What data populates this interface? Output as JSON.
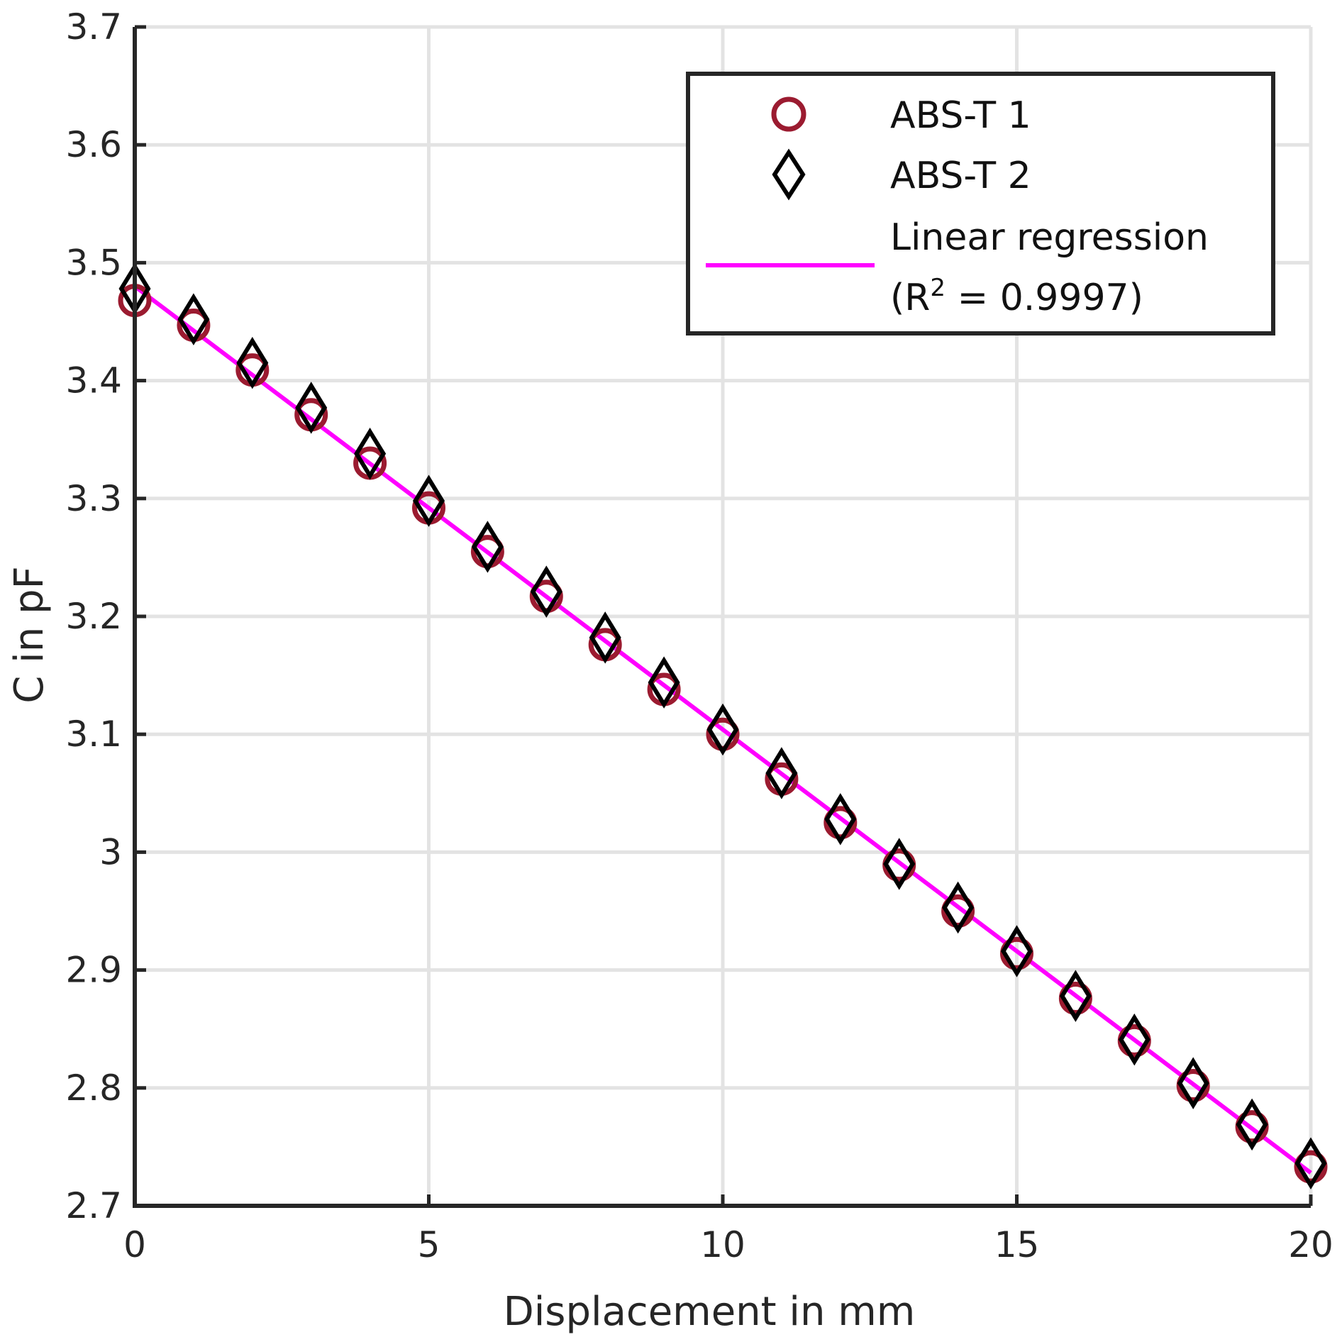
{
  "chart_data": {
    "type": "scatter",
    "xlabel": "Displacement in mm",
    "ylabel": "C in pF",
    "xlim": [
      0,
      20
    ],
    "ylim": [
      2.7,
      3.7
    ],
    "x_ticks": [
      "0",
      "5",
      "10",
      "15",
      "20"
    ],
    "y_ticks": [
      "2.7",
      "2.8",
      "2.9",
      "3",
      "3.1",
      "3.2",
      "3.3",
      "3.4",
      "3.5",
      "3.6",
      "3.7"
    ],
    "grid": true,
    "legend_position": "top-right",
    "x": [
      0,
      1,
      2,
      3,
      4,
      5,
      6,
      7,
      8,
      9,
      10,
      11,
      12,
      13,
      14,
      15,
      16,
      17,
      18,
      19,
      20
    ],
    "series": [
      {
        "name": "ABS-T 1",
        "marker": "circle",
        "color": "#9b1b30",
        "values": [
          3.468,
          3.447,
          3.409,
          3.371,
          3.33,
          3.292,
          3.255,
          3.217,
          3.176,
          3.138,
          3.1,
          3.062,
          3.025,
          2.989,
          2.95,
          2.914,
          2.876,
          2.84,
          2.802,
          2.767,
          2.733
        ]
      },
      {
        "name": "ABS-T 2",
        "marker": "diamond",
        "color": "#000000",
        "values": [
          3.478,
          3.452,
          3.415,
          3.377,
          3.338,
          3.298,
          3.259,
          3.221,
          3.182,
          3.144,
          3.104,
          3.067,
          3.028,
          2.99,
          2.953,
          2.916,
          2.878,
          2.841,
          2.804,
          2.769,
          2.736
        ]
      },
      {
        "name": "Linear regression",
        "name_line2_prefix": "(R",
        "name_line2_sup": "2",
        "name_line2_suffix": " = 0.9997)",
        "type": "line",
        "color": "#ff00ff",
        "x": [
          0,
          20
        ],
        "values": [
          3.48,
          2.728
        ]
      }
    ]
  }
}
